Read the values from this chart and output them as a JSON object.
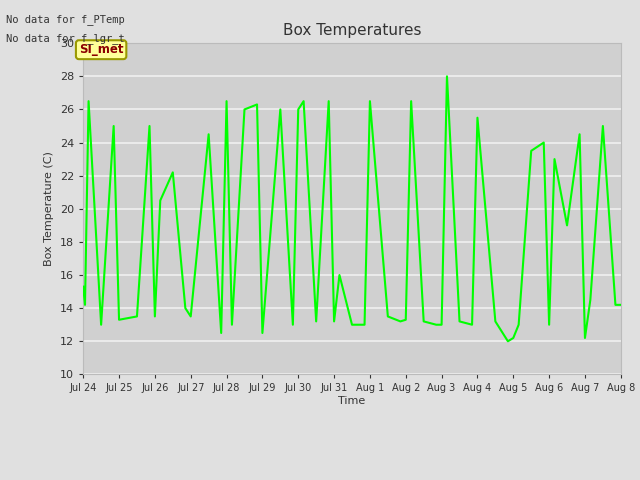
{
  "title": "Box Temperatures",
  "ylabel": "Box Temperature (C)",
  "xlabel": "Time",
  "text_no_data_1": "No data for f_PTemp",
  "text_no_data_2": "No data for f_lgr_t",
  "legend_color": "#00ff00",
  "si_met_label": "SI_met",
  "ylim": [
    10,
    30
  ],
  "yticks": [
    10,
    12,
    14,
    16,
    18,
    20,
    22,
    24,
    26,
    28,
    30
  ],
  "bg_color": "#e0e0e0",
  "plot_bg_color": "#d0d0d0",
  "grid_color": "#f0f0f0",
  "x_labels": [
    "Jul 24",
    "Jul 25",
    "Jul 26",
    "Jul 27",
    "Jul 28",
    "Jul 29",
    "Jul 30",
    "Jul 31",
    "Aug 1",
    "Aug 2",
    "Aug 3",
    "Aug 4",
    "Aug 5",
    "Aug 6",
    "Aug 7",
    "Aug 8"
  ],
  "line_color": "#00ff00",
  "line_width": 1.5,
  "tower_air_t_x": [
    0,
    0.05,
    0.15,
    0.5,
    0.85,
    1.0,
    1.5,
    1.85,
    2.0,
    2.15,
    2.5,
    2.85,
    3.0,
    3.5,
    3.85,
    4.0,
    4.15,
    4.5,
    4.85,
    5.0,
    5.5,
    5.85,
    6.0,
    6.15,
    6.5,
    6.85,
    7.0,
    7.15,
    7.5,
    7.85,
    8.0,
    8.5,
    8.85,
    9.0,
    9.15,
    9.5,
    9.85,
    10.0,
    10.15,
    10.5,
    10.85,
    11.0,
    11.5,
    11.85,
    12.0,
    12.15,
    12.5,
    12.85,
    13.0,
    13.15,
    13.5,
    13.85,
    14.0,
    14.15,
    14.5,
    14.85,
    15.0
  ],
  "tower_air_t_y": [
    15.3,
    14.2,
    26.5,
    13.0,
    25.0,
    13.3,
    13.5,
    25.0,
    13.5,
    20.5,
    22.2,
    14.0,
    13.5,
    24.5,
    12.5,
    26.5,
    13.0,
    26.0,
    26.3,
    12.5,
    26.0,
    13.0,
    26.0,
    26.5,
    13.2,
    26.5,
    13.2,
    16.0,
    13.0,
    13.0,
    26.5,
    13.5,
    13.2,
    13.3,
    26.5,
    13.2,
    13.0,
    13.0,
    28.0,
    13.2,
    13.0,
    25.5,
    13.2,
    12.0,
    12.2,
    13.0,
    23.5,
    24.0,
    13.0,
    23.0,
    19.0,
    24.5,
    12.2,
    14.5,
    25.0,
    14.2,
    14.2
  ]
}
